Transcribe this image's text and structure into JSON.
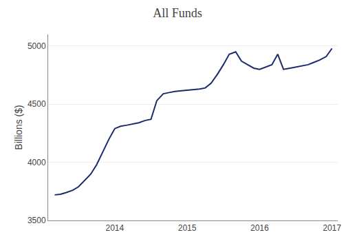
{
  "chart_data": {
    "type": "line",
    "title": "All Funds",
    "ylabel": "Billions ($)",
    "color": "#1b2a6b",
    "grid": true,
    "xlim": [
      2013.08,
      2017.08
    ],
    "xticks": [
      2014,
      2015,
      2016,
      2017
    ],
    "ylim": [
      3500,
      5100
    ],
    "yticks": [
      3500,
      4000,
      4500,
      5000
    ],
    "x": [
      2013.17,
      2013.25,
      2013.33,
      2013.42,
      2013.5,
      2013.58,
      2013.67,
      2013.75,
      2013.83,
      2013.92,
      2014.0,
      2014.08,
      2014.17,
      2014.25,
      2014.33,
      2014.42,
      2014.5,
      2014.58,
      2014.67,
      2014.75,
      2014.83,
      2014.92,
      2015.0,
      2015.08,
      2015.17,
      2015.25,
      2015.33,
      2015.42,
      2015.5,
      2015.58,
      2015.67,
      2015.75,
      2015.83,
      2015.92,
      2016.0,
      2016.08,
      2016.17,
      2016.25,
      2016.33,
      2016.42,
      2016.5,
      2016.58,
      2016.67,
      2016.75,
      2016.83,
      2016.92,
      2017.0
    ],
    "values": [
      3720,
      3725,
      3740,
      3760,
      3790,
      3840,
      3900,
      3980,
      4080,
      4200,
      4290,
      4310,
      4320,
      4330,
      4340,
      4360,
      4370,
      4530,
      4590,
      4600,
      4610,
      4615,
      4620,
      4625,
      4630,
      4640,
      4680,
      4760,
      4840,
      4930,
      4950,
      4870,
      4840,
      4810,
      4800,
      4820,
      4840,
      4930,
      4800,
      4810,
      4820,
      4830,
      4840,
      4860,
      4880,
      4910,
      4980
    ]
  }
}
